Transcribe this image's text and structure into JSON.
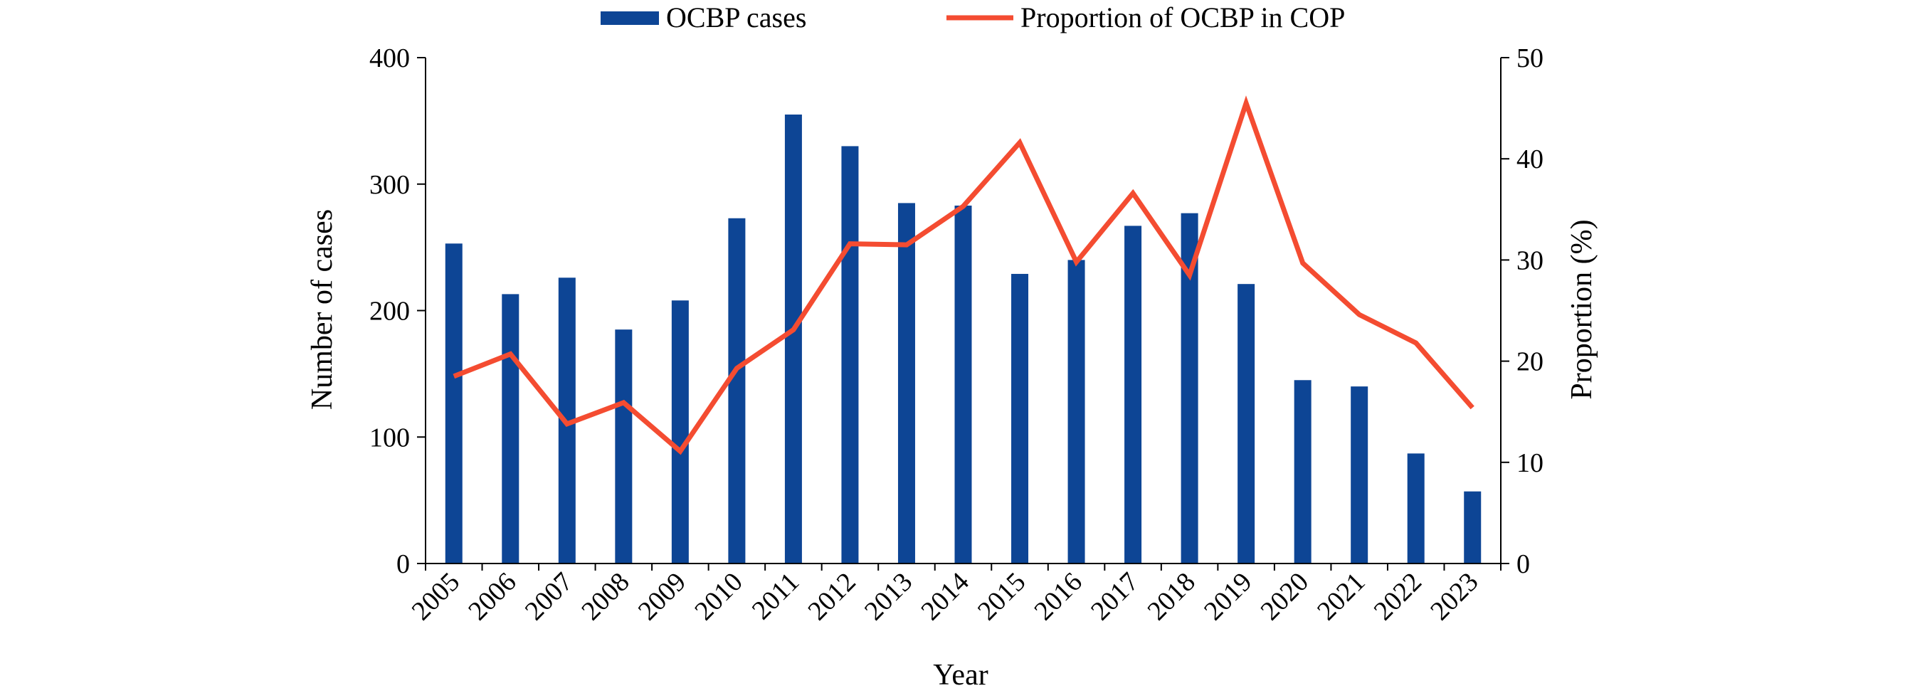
{
  "chart_data": {
    "type": "bar",
    "title": "",
    "xlabel": "Year",
    "ylabel": "Number of cases",
    "y2label": "Proportion (%)",
    "ylim": [
      0,
      400
    ],
    "y2lim": [
      0,
      50
    ],
    "yticks": [
      0,
      100,
      200,
      300,
      400
    ],
    "y2ticks": [
      0,
      10,
      20,
      30,
      40,
      50
    ],
    "categories": [
      "2005",
      "2006",
      "2007",
      "2008",
      "2009",
      "2010",
      "2011",
      "2012",
      "2013",
      "2014",
      "2015",
      "2016",
      "2017",
      "2018",
      "2019",
      "2020",
      "2021",
      "2022",
      "2023"
    ],
    "series": [
      {
        "name": "OCBP cases",
        "type": "bar",
        "axis": "left",
        "color": "#0d4595",
        "values": [
          253,
          213,
          226,
          185,
          208,
          273,
          355,
          330,
          285,
          283,
          229,
          240,
          267,
          277,
          221,
          145,
          140,
          87,
          57
        ]
      },
      {
        "name": "Proportion of OCBP in COP",
        "type": "line",
        "axis": "right",
        "color": "#f44c31",
        "values": [
          18.5,
          20.7,
          13.8,
          15.9,
          11.1,
          19.3,
          23.1,
          31.6,
          31.5,
          35.3,
          41.6,
          29.8,
          36.6,
          28.5,
          45.5,
          29.7,
          24.6,
          21.8,
          15.4
        ]
      }
    ],
    "legend": "top-center",
    "grid": false
  }
}
